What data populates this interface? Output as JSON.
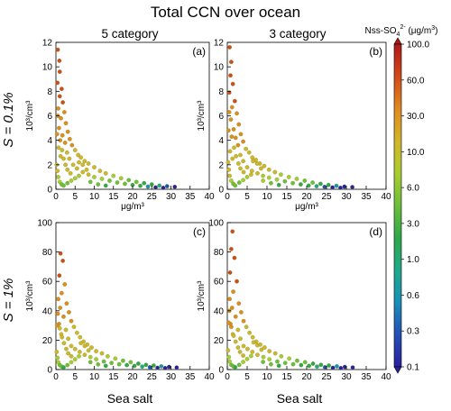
{
  "figure": {
    "title": "Total CCN over ocean",
    "column_titles": [
      "5 category",
      "3  category"
    ],
    "row_labels": [
      "S = 0.1%",
      "S = 1%"
    ],
    "bottom_labels": [
      "Sea salt",
      "Sea salt"
    ],
    "colorbar": {
      "label_main": "Nss-SO",
      "label_sub": "4",
      "label_sup": "2-",
      "label_unit": " (μg/m",
      "label_unit_sup": "3",
      "label_close": ")",
      "ticks": [
        "100.0",
        "60.0",
        "30.0",
        "10.0",
        "6.0",
        "3.0",
        "1.0",
        "0.6",
        "0.3",
        "0.1"
      ],
      "colors": [
        "#b01818",
        "#d24a1a",
        "#e08a20",
        "#d2b52a",
        "#aacc30",
        "#6cbf3a",
        "#2ea84a",
        "#1ea98a",
        "#1a8fb8",
        "#2150b4",
        "#2a1f9e"
      ]
    }
  },
  "chart_data": [
    {
      "type": "scatter",
      "panel_label": "(a)",
      "xlabel": "μg/m³",
      "ylabel": "10³/cm³",
      "xlim": [
        0,
        40
      ],
      "ylim": [
        0,
        12
      ],
      "xticks": [
        "0",
        "5",
        "10",
        "15",
        "20",
        "25",
        "30",
        "35",
        "40"
      ],
      "yticks": [
        "0",
        "2",
        "4",
        "6",
        "8",
        "10",
        "12"
      ],
      "points": [
        [
          0.5,
          11.4
        ],
        [
          0.9,
          10.5
        ],
        [
          1.0,
          9.6
        ],
        [
          0.4,
          8.7
        ],
        [
          1.5,
          8.2
        ],
        [
          1.0,
          7.6
        ],
        [
          1.8,
          7.1
        ],
        [
          0.6,
          6.6
        ],
        [
          2.2,
          6.3
        ],
        [
          1.3,
          5.8
        ],
        [
          2.6,
          5.4
        ],
        [
          0.8,
          5.0
        ],
        [
          3.1,
          4.7
        ],
        [
          1.7,
          4.4
        ],
        [
          3.6,
          4.1
        ],
        [
          2.4,
          3.8
        ],
        [
          4.2,
          3.6
        ],
        [
          0.7,
          3.4
        ],
        [
          5.0,
          3.2
        ],
        [
          2.9,
          3.0
        ],
        [
          5.8,
          2.8
        ],
        [
          1.2,
          2.7
        ],
        [
          6.5,
          2.6
        ],
        [
          3.5,
          2.5
        ],
        [
          7.5,
          2.3
        ],
        [
          8.5,
          2.1
        ],
        [
          4.5,
          2.0
        ],
        [
          10.0,
          1.8
        ],
        [
          5.5,
          1.7
        ],
        [
          11.5,
          1.5
        ],
        [
          7.0,
          1.4
        ],
        [
          13.0,
          1.3
        ],
        [
          8.5,
          1.2
        ],
        [
          15.0,
          1.1
        ],
        [
          10.0,
          1.0
        ],
        [
          17.0,
          0.9
        ],
        [
          12.0,
          0.85
        ],
        [
          19.0,
          0.75
        ],
        [
          14.0,
          0.7
        ],
        [
          21.0,
          0.6
        ],
        [
          16.0,
          0.55
        ],
        [
          23.0,
          0.5
        ],
        [
          18.0,
          0.45
        ],
        [
          25.0,
          0.4
        ],
        [
          20.0,
          0.35
        ],
        [
          27.0,
          0.3
        ],
        [
          22.0,
          0.28
        ],
        [
          29.0,
          0.25
        ],
        [
          24.0,
          0.22
        ],
        [
          31.0,
          0.2
        ],
        [
          26.0,
          0.15
        ],
        [
          28.0,
          0.12
        ],
        [
          0.3,
          4.5
        ],
        [
          0.5,
          6.0
        ],
        [
          1.1,
          4.0
        ],
        [
          1.6,
          3.2
        ],
        [
          2.0,
          2.5
        ],
        [
          2.5,
          2.0
        ],
        [
          3.0,
          1.6
        ],
        [
          3.8,
          1.3
        ],
        [
          0.2,
          2.0
        ],
        [
          0.4,
          1.5
        ],
        [
          0.6,
          1.0
        ],
        [
          1.0,
          0.6
        ],
        [
          1.5,
          0.4
        ],
        [
          2.0,
          0.3
        ],
        [
          3.0,
          0.5
        ],
        [
          4.0,
          0.7
        ],
        [
          5.0,
          0.9
        ],
        [
          6.0,
          1.1
        ],
        [
          9.0,
          0.6
        ],
        [
          11.0,
          0.4
        ],
        [
          13.0,
          0.3
        ],
        [
          6.0,
          2.2
        ],
        [
          7.0,
          2.0
        ],
        [
          8.0,
          1.6
        ]
      ]
    },
    {
      "type": "scatter",
      "panel_label": "(b)",
      "xlabel": "μg/m³",
      "ylabel": "10³/cm³",
      "xlim": [
        0,
        40
      ],
      "ylim": [
        0,
        12
      ],
      "xticks": [
        "0",
        "5",
        "10",
        "15",
        "20",
        "25",
        "30",
        "35",
        "40"
      ],
      "yticks": [
        "0",
        "2",
        "4",
        "6",
        "8",
        "10",
        "12"
      ],
      "points": [
        [
          0.6,
          11.6
        ],
        [
          1.0,
          10.4
        ],
        [
          0.8,
          9.3
        ],
        [
          1.4,
          8.6
        ],
        [
          0.5,
          7.9
        ],
        [
          1.9,
          7.2
        ],
        [
          1.2,
          6.7
        ],
        [
          2.4,
          6.2
        ],
        [
          0.9,
          5.7
        ],
        [
          2.9,
          5.3
        ],
        [
          1.6,
          4.9
        ],
        [
          3.4,
          4.5
        ],
        [
          2.1,
          4.2
        ],
        [
          4.0,
          3.9
        ],
        [
          2.7,
          3.6
        ],
        [
          4.7,
          3.3
        ],
        [
          0.7,
          3.1
        ],
        [
          5.5,
          3.0
        ],
        [
          3.3,
          2.8
        ],
        [
          6.3,
          2.6
        ],
        [
          1.3,
          2.5
        ],
        [
          7.2,
          2.4
        ],
        [
          4.0,
          2.3
        ],
        [
          8.2,
          2.1
        ],
        [
          9.3,
          1.9
        ],
        [
          5.0,
          1.8
        ],
        [
          10.5,
          1.6
        ],
        [
          6.2,
          1.5
        ],
        [
          12.0,
          1.4
        ],
        [
          7.6,
          1.3
        ],
        [
          13.5,
          1.2
        ],
        [
          9.0,
          1.1
        ],
        [
          15.5,
          1.0
        ],
        [
          10.5,
          0.95
        ],
        [
          17.5,
          0.85
        ],
        [
          12.5,
          0.8
        ],
        [
          19.5,
          0.7
        ],
        [
          14.5,
          0.65
        ],
        [
          21.5,
          0.55
        ],
        [
          16.5,
          0.5
        ],
        [
          23.5,
          0.45
        ],
        [
          18.5,
          0.4
        ],
        [
          25.5,
          0.35
        ],
        [
          20.5,
          0.3
        ],
        [
          27.5,
          0.28
        ],
        [
          22.5,
          0.25
        ],
        [
          29.5,
          0.22
        ],
        [
          24.5,
          0.2
        ],
        [
          31.5,
          0.18
        ],
        [
          26.5,
          0.15
        ],
        [
          28.5,
          0.12
        ],
        [
          0.3,
          4.8
        ],
        [
          0.5,
          6.3
        ],
        [
          1.1,
          4.3
        ],
        [
          1.7,
          3.4
        ],
        [
          2.2,
          2.7
        ],
        [
          2.8,
          2.1
        ],
        [
          3.3,
          1.7
        ],
        [
          4.1,
          1.4
        ],
        [
          0.2,
          2.2
        ],
        [
          0.4,
          1.6
        ],
        [
          0.6,
          1.1
        ],
        [
          1.0,
          0.7
        ],
        [
          1.5,
          0.45
        ],
        [
          2.0,
          0.3
        ],
        [
          3.0,
          0.55
        ],
        [
          4.0,
          0.75
        ],
        [
          5.0,
          1.0
        ],
        [
          6.0,
          1.2
        ],
        [
          9.0,
          0.7
        ],
        [
          11.0,
          0.5
        ],
        [
          13.0,
          0.35
        ],
        [
          6.5,
          2.3
        ],
        [
          7.5,
          2.1
        ],
        [
          8.5,
          1.7
        ]
      ]
    },
    {
      "type": "scatter",
      "panel_label": "(c)",
      "xlabel": "",
      "ylabel": "10³/cm³",
      "xlim": [
        0,
        40
      ],
      "ylim": [
        0,
        100
      ],
      "xticks": [
        "0",
        "5",
        "10",
        "15",
        "20",
        "25",
        "30",
        "35",
        "40"
      ],
      "yticks": [
        "0",
        "20",
        "40",
        "60",
        "80",
        "100"
      ],
      "points": [
        [
          1.2,
          79
        ],
        [
          1.8,
          74
        ],
        [
          0.9,
          64
        ],
        [
          2.3,
          58
        ],
        [
          1.5,
          52
        ],
        [
          0.6,
          48
        ],
        [
          2.8,
          45
        ],
        [
          1.1,
          42
        ],
        [
          3.4,
          39
        ],
        [
          2.0,
          36
        ],
        [
          4.0,
          33
        ],
        [
          0.8,
          31
        ],
        [
          4.7,
          29
        ],
        [
          2.6,
          27
        ],
        [
          5.5,
          25
        ],
        [
          1.4,
          24
        ],
        [
          6.3,
          22
        ],
        [
          3.2,
          21
        ],
        [
          7.2,
          19
        ],
        [
          8.2,
          17
        ],
        [
          4.0,
          16
        ],
        [
          9.3,
          15
        ],
        [
          5.0,
          14
        ],
        [
          10.5,
          12.5
        ],
        [
          6.2,
          12
        ],
        [
          12.0,
          11
        ],
        [
          7.5,
          10
        ],
        [
          13.5,
          9
        ],
        [
          9.0,
          8.5
        ],
        [
          15.5,
          7.5
        ],
        [
          10.5,
          7
        ],
        [
          17.5,
          6
        ],
        [
          12.5,
          5.5
        ],
        [
          19.5,
          5
        ],
        [
          14.5,
          4.5
        ],
        [
          21.5,
          4
        ],
        [
          16.5,
          3.6
        ],
        [
          23.5,
          3.2
        ],
        [
          18.5,
          3
        ],
        [
          25.5,
          2.7
        ],
        [
          20.5,
          2.5
        ],
        [
          27.5,
          2.2
        ],
        [
          22.5,
          2
        ],
        [
          29.5,
          1.8
        ],
        [
          24.5,
          1.6
        ],
        [
          31.5,
          1.4
        ],
        [
          26.5,
          1.2
        ],
        [
          28.5,
          1.0
        ],
        [
          0.3,
          30
        ],
        [
          0.5,
          38
        ],
        [
          1.0,
          28
        ],
        [
          1.6,
          22
        ],
        [
          2.1,
          18
        ],
        [
          2.7,
          14
        ],
        [
          3.2,
          11
        ],
        [
          4.0,
          9
        ],
        [
          0.2,
          12
        ],
        [
          0.4,
          8
        ],
        [
          0.6,
          5
        ],
        [
          1.0,
          3
        ],
        [
          1.5,
          2
        ],
        [
          2.0,
          1.5
        ],
        [
          3.0,
          3
        ],
        [
          4.0,
          5
        ],
        [
          5.0,
          7
        ],
        [
          6.0,
          9
        ],
        [
          9.0,
          5
        ],
        [
          11.0,
          3.5
        ],
        [
          13.0,
          2.5
        ],
        [
          6.5,
          18
        ],
        [
          7.5,
          16
        ],
        [
          8.5,
          13
        ]
      ]
    },
    {
      "type": "scatter",
      "panel_label": "(d)",
      "xlabel": "",
      "ylabel": "10³/cm³",
      "xlim": [
        0,
        40
      ],
      "ylim": [
        0,
        100
      ],
      "xticks": [
        "0",
        "5",
        "10",
        "15",
        "20",
        "25",
        "30",
        "35",
        "40"
      ],
      "yticks": [
        "0",
        "20",
        "40",
        "60",
        "80",
        "100"
      ],
      "points": [
        [
          1.3,
          94
        ],
        [
          1.0,
          82
        ],
        [
          1.8,
          76
        ],
        [
          0.7,
          66
        ],
        [
          2.4,
          60
        ],
        [
          1.5,
          53
        ],
        [
          0.6,
          48
        ],
        [
          2.9,
          45
        ],
        [
          1.2,
          42
        ],
        [
          3.5,
          39
        ],
        [
          2.1,
          36
        ],
        [
          4.1,
          33
        ],
        [
          0.8,
          31
        ],
        [
          4.8,
          29
        ],
        [
          2.7,
          27
        ],
        [
          5.6,
          25
        ],
        [
          1.4,
          24
        ],
        [
          6.4,
          22
        ],
        [
          3.3,
          21
        ],
        [
          7.3,
          19
        ],
        [
          8.3,
          17
        ],
        [
          4.1,
          16
        ],
        [
          9.4,
          15
        ],
        [
          5.1,
          14
        ],
        [
          10.6,
          12.5
        ],
        [
          6.3,
          12
        ],
        [
          12.1,
          11
        ],
        [
          7.6,
          10
        ],
        [
          13.6,
          9
        ],
        [
          9.1,
          8.5
        ],
        [
          15.6,
          7.5
        ],
        [
          10.6,
          7
        ],
        [
          17.6,
          6
        ],
        [
          12.6,
          5.5
        ],
        [
          19.6,
          5
        ],
        [
          14.6,
          4.5
        ],
        [
          21.6,
          4
        ],
        [
          16.6,
          3.6
        ],
        [
          23.6,
          3.2
        ],
        [
          18.6,
          3
        ],
        [
          25.6,
          2.7
        ],
        [
          20.6,
          2.5
        ],
        [
          27.6,
          2.2
        ],
        [
          22.6,
          2
        ],
        [
          29.6,
          1.8
        ],
        [
          24.6,
          1.6
        ],
        [
          31.6,
          1.4
        ],
        [
          26.6,
          1.2
        ],
        [
          28.6,
          1.0
        ],
        [
          0.3,
          32
        ],
        [
          0.5,
          40
        ],
        [
          1.0,
          29
        ],
        [
          1.6,
          23
        ],
        [
          2.1,
          19
        ],
        [
          2.7,
          15
        ],
        [
          3.2,
          12
        ],
        [
          4.0,
          9.5
        ],
        [
          0.2,
          13
        ],
        [
          0.4,
          8.5
        ],
        [
          0.6,
          5.5
        ],
        [
          1.0,
          3.2
        ],
        [
          1.5,
          2.2
        ],
        [
          2.0,
          1.6
        ],
        [
          3.0,
          3.2
        ],
        [
          4.0,
          5.2
        ],
        [
          5.0,
          7.2
        ],
        [
          6.0,
          9.2
        ],
        [
          9.0,
          5.2
        ],
        [
          11.0,
          3.6
        ],
        [
          13.0,
          2.6
        ],
        [
          6.6,
          18.5
        ],
        [
          7.6,
          16.5
        ],
        [
          8.6,
          13.5
        ]
      ]
    }
  ]
}
